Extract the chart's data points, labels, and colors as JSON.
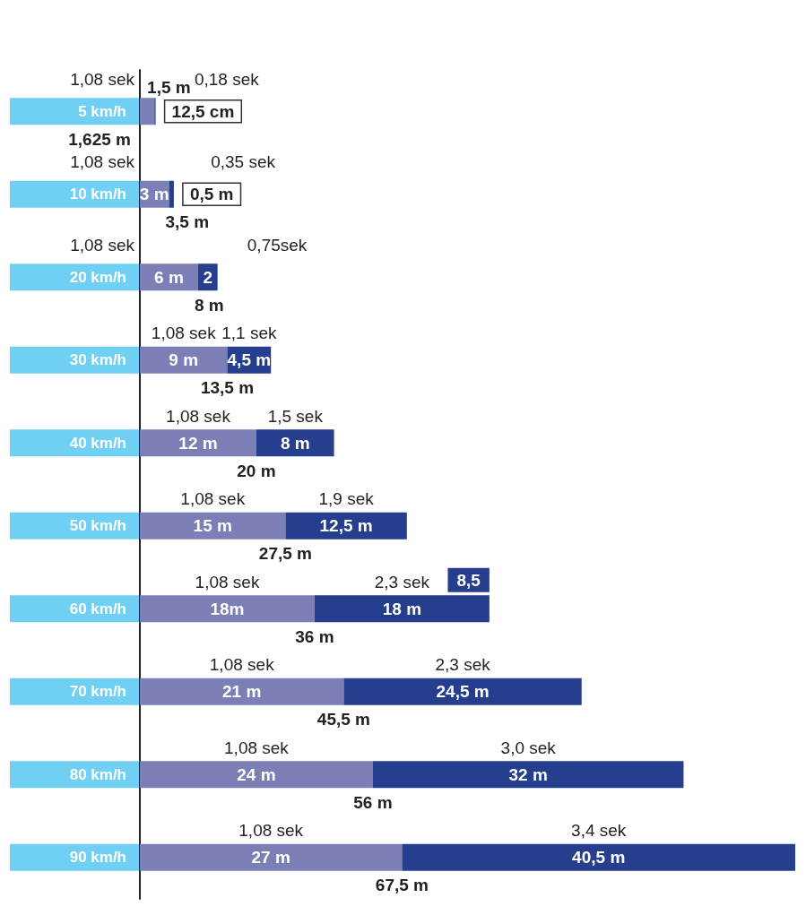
{
  "chart_data": {
    "type": "bar",
    "orientation": "horizontal",
    "stacked": true,
    "categories": [
      "5 km/h",
      "10 km/h",
      "20 km/h",
      "30 km/h",
      "40 km/h",
      "50 km/h",
      "60 km/h",
      "70 km/h",
      "80 km/h",
      "90 km/h"
    ],
    "series": [
      {
        "color": "#7b7fb5",
        "values": [
          1.5,
          3,
          6,
          9,
          12,
          15,
          18,
          21,
          24,
          27
        ],
        "value_labels": [
          "1,5 m",
          "3 m",
          "6 m",
          "9 m",
          "12 m",
          "15 m",
          "18m",
          "21 m",
          "24 m",
          "27 m"
        ]
      },
      {
        "color": "#263e8e",
        "values": [
          0.125,
          0.5,
          2,
          4.5,
          8,
          12.5,
          18,
          24.5,
          32,
          40.5
        ],
        "value_labels": [
          null,
          "0,5 m",
          "2",
          "4,5 m",
          "8 m",
          "12,5 m",
          "18 m",
          "24,5 m",
          "32 m",
          "40,5 m"
        ]
      }
    ],
    "totals": [
      "1,625 m",
      "3,5 m",
      "8 m",
      "13,5 m",
      "20 m",
      "27,5 m",
      "36 m",
      "45,5 m",
      "56 m",
      "67,5 m"
    ],
    "annotations": [
      "1,08 sek",
      "0,18 sek",
      "1,08 sek",
      "0,35 sek",
      "1,08 sek",
      "0,75sek",
      "1,08 sek",
      "1,1 sek",
      "1,08 sek",
      "1,5 sek",
      "1,08 sek",
      "1,9 sek",
      "1,08 sek",
      "2,3 sek",
      "1,08 sek",
      "2,3 sek",
      "1,08 sek",
      "3,0 sek",
      "1,08 sek",
      "3,4 sek",
      {
        "text": "12,5 cm",
        "x": 1.625,
        "y": "5 km/h"
      },
      {
        "text": "8,5",
        "x": 36,
        "y": "60 km/h"
      }
    ]
  }
}
